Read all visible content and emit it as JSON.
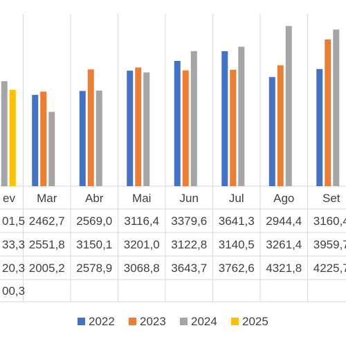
{
  "chart_data": {
    "type": "bar",
    "categories": [
      "Fev",
      "Mar",
      "Abr",
      "Mai",
      "Jun",
      "Jul",
      "Ago",
      "Set"
    ],
    "series": [
      {
        "name": "2022",
        "color": "#4472C4",
        "values": [
          null,
          2462.7,
          2569.0,
          3116.4,
          3379.6,
          3641.3,
          2944.4,
          3160.4
        ],
        "table_text": [
          "01,5",
          "2462,7",
          "2569,0",
          "3116,4",
          "3379,6",
          "3641,3",
          "2944,4",
          "3160,4"
        ]
      },
      {
        "name": "2023",
        "color": "#ED7D31",
        "values": [
          null,
          2551.8,
          3150.1,
          3201.0,
          3122.8,
          3140.5,
          3261.4,
          3959.7
        ],
        "table_text": [
          "33,3",
          "2551,8",
          "3150,1",
          "3201,0",
          "3122,8",
          "3140,5",
          "3261,4",
          "3959,7"
        ]
      },
      {
        "name": "2024",
        "color": "#A5A5A5",
        "values": [
          null,
          2005.2,
          2578.9,
          3068.8,
          3643.7,
          3762.6,
          4321.8,
          4225.7
        ],
        "table_text": [
          "20,3",
          "2005,2",
          "2578,9",
          "3068,8",
          "3643,7",
          "3762,6",
          "4321,8",
          "4225,7"
        ]
      },
      {
        "name": "2025",
        "color": "#FFC000",
        "values": [
          null,
          null,
          null,
          null,
          null,
          null,
          null,
          null
        ],
        "table_text": [
          "00,3",
          "",
          "",
          "",
          "",
          "",
          "",
          ""
        ]
      }
    ],
    "visible_first_column_values": {
      "2024": 2833.0,
      "2025": 2600.0
    },
    "visible_category_labels": [
      "ev",
      "Mar",
      "Abr",
      "Mai",
      "Jun",
      "Jul",
      "Ago",
      "Set"
    ],
    "ylim": [
      0,
      4650
    ],
    "legend_position": "bottom",
    "data_table": true
  }
}
